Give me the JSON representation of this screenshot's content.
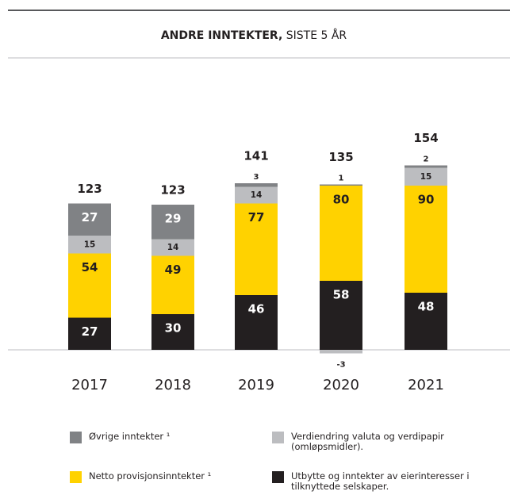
{
  "chart_data": {
    "type": "stacked_bar",
    "title": "ANDRE INNTEKTER,",
    "subtitle": "SISTE 5 ÅR",
    "categories": [
      "2017",
      "2018",
      "2019",
      "2020",
      "2021"
    ],
    "series": [
      {
        "name": "Utbytte og inntekter av eierinteresser i tilknyttede selskaper.",
        "color": "#231f20",
        "values": [
          27,
          30,
          46,
          58,
          48
        ]
      },
      {
        "name": "Netto provisjonsinntekter ¹",
        "color": "#ffd200",
        "values": [
          54,
          49,
          77,
          80,
          90
        ]
      },
      {
        "name": "Verdiendring valuta og verdipapir (omløpsmidler).",
        "color": "#bcbdc0",
        "values": [
          15,
          14,
          14,
          -3,
          15
        ]
      },
      {
        "name": "Øvrige inntekter ¹",
        "color": "#808285",
        "values": [
          27,
          29,
          3,
          1,
          2
        ]
      }
    ],
    "totals": [
      123,
      123,
      141,
      135,
      154
    ]
  }
}
